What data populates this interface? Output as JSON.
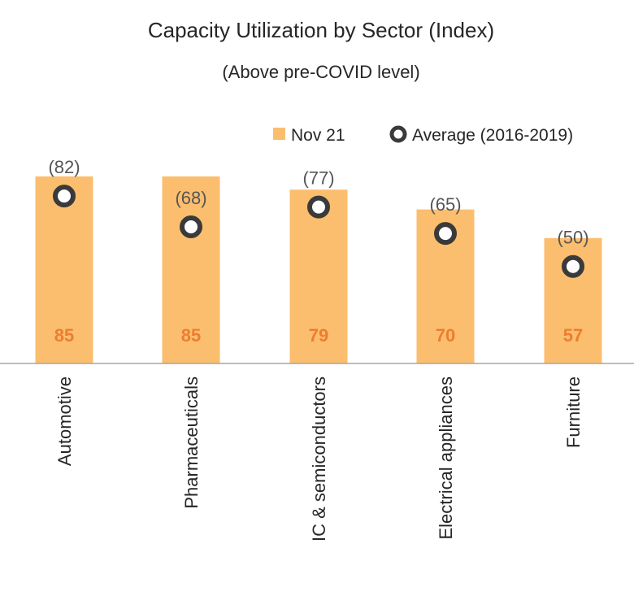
{
  "chart_data": {
    "type": "bar",
    "title": "Capacity Utilization by Sector (Index)",
    "subtitle": "(Above pre-COVID level)",
    "categories": [
      "Automotive",
      "Pharmaceuticals",
      "IC & semiconductors",
      "Electrical appliances",
      "Furniture"
    ],
    "series": [
      {
        "name": "Nov 21",
        "kind": "bar",
        "values": [
          85,
          85,
          79,
          70,
          57
        ]
      },
      {
        "name": "Average (2016-2019)",
        "kind": "marker",
        "values": [
          82,
          68,
          77,
          65,
          50
        ]
      }
    ],
    "value_labels": [
      "85",
      "85",
      "79",
      "70",
      "57"
    ],
    "average_labels": [
      "(82)",
      "(68)",
      "(77)",
      "(65)",
      "(50)"
    ],
    "ylim": [
      0,
      85
    ],
    "grid": false,
    "legend_position": "top-right",
    "colors": {
      "bar": "#FBBE6E",
      "value_label": "#ED7D31",
      "marker_stroke": "#3A3A3A",
      "marker_fill": "#FFFFFF",
      "axis": "#A6A6A6",
      "text": "#262626"
    }
  }
}
